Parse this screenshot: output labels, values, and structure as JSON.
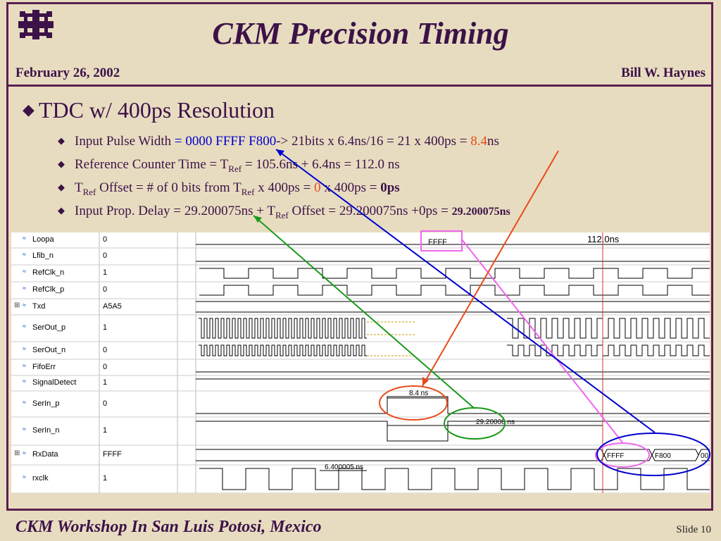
{
  "slide": {
    "title": "CKM Precision Timing",
    "date": "February 26, 2002",
    "author": "Bill W. Haynes",
    "footer": "CKM Workshop In San Luis Potosi, Mexico",
    "slide_number": "Slide 10",
    "logo_icon": "fermilab-logo-icon"
  },
  "bullets": {
    "main": "TDC w/ 400ps Resolution",
    "b1": {
      "a": "Input Pulse Width ",
      "b": "= 0000 FFFF F800",
      "c": "-> 21bits x 6.4ns/16 = 21 x 400ps = ",
      "d": "8.4",
      "e": "ns"
    },
    "b2": {
      "a": "Reference Counter Time = T",
      "sub": "Ref",
      "b": "  = 105.6ns  + 6.4ns = 112.0 ns"
    },
    "b3": {
      "a": "T",
      "sub1": "Ref",
      "b": " Offset  = # of 0 bits from T",
      "sub2": "Ref",
      "c": "  x 400ps = ",
      "d": "0",
      "e": " x 400ps = ",
      "f": "0ps"
    },
    "b4": {
      "a": "Input Prop. Delay = 29.200075ns + T",
      "sub": "Ref",
      "b": " Offset = 29.200075ns +0ps = ",
      "c": "29.200075ns"
    }
  },
  "waveform": {
    "signals": [
      {
        "name": "Loopa",
        "value": "0"
      },
      {
        "name": "Lfib_n",
        "value": "0"
      },
      {
        "name": "RefClk_n",
        "value": "1"
      },
      {
        "name": "RefClk_p",
        "value": "0"
      },
      {
        "name": "Txd",
        "value": "A5A5"
      },
      {
        "name": "SerOut_p",
        "value": "1"
      },
      {
        "name": "SerOut_n",
        "value": "0"
      },
      {
        "name": "FifoErr",
        "value": "0"
      },
      {
        "name": "SignalDetect",
        "value": "1"
      },
      {
        "name": "SerIn_p",
        "value": "0"
      },
      {
        "name": "SerIn_n",
        "value": "1"
      },
      {
        "name": "RxData",
        "value": "FFFF"
      },
      {
        "name": "rxclk",
        "value": "1"
      }
    ],
    "labels": {
      "ffff_top": "FFFF",
      "time_112": "112.0ns",
      "meas_84": "8.4 ns",
      "meas_292": "29.20008 ns",
      "meas_64": "6.400005 ns",
      "rx_ffff": "FFFF",
      "rx_f800": "F800",
      "rx_00": "00"
    }
  },
  "colors": {
    "title": "#3c1248",
    "border": "#5a1f4f",
    "background": "#e8dcc0",
    "accent_blue": "#0000cc",
    "accent_red": "#e84b1a",
    "annot_green": "#1a9a1a",
    "annot_magenta": "#ee66ee"
  }
}
